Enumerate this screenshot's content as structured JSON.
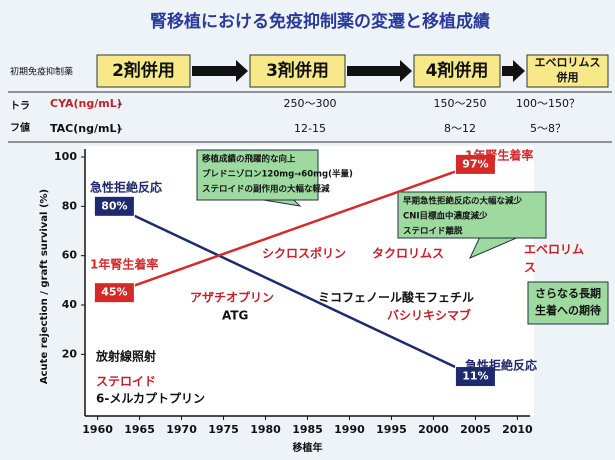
{
  "header": {
    "title": "腎移植における免疫抑制薬の変遷と移植成績"
  },
  "regimen": {
    "label": "初期免疫抑制薬",
    "steps": [
      [
        "2剤併用"
      ],
      [
        "3剤併用"
      ],
      [
        "4剤併用"
      ],
      [
        "エベロリムス",
        "併用"
      ]
    ]
  },
  "trough": {
    "label": [
      "トラ",
      "フ値"
    ],
    "rows": [
      {
        "label": "CYA(ng/mL)",
        "cells": [
          "–",
          "250～300",
          "150～250",
          "100～150？"
        ]
      },
      {
        "label": "TAC(ng/mL)",
        "cells": [
          "–",
          "12-15",
          "8～12",
          "5～8？"
        ]
      }
    ]
  },
  "chart_data": {
    "type": "line",
    "xlabel": "移植年",
    "ylabel": "Acute rejection / graft survival (%)",
    "xlim": [
      1958.5,
      2011.5
    ],
    "ylim": [
      -5,
      100
    ],
    "xticks": [
      1960,
      1965,
      1970,
      1975,
      1980,
      1985,
      1990,
      1995,
      2000,
      2005,
      2010
    ],
    "yticks": [
      20,
      40,
      60,
      80,
      100
    ],
    "series": [
      {
        "name": "急性拒絶反応",
        "color": "#1f2a6e",
        "x": [
          1962,
          2005
        ],
        "values": [
          80,
          11
        ],
        "value_labels": [
          "80%",
          "11%"
        ]
      },
      {
        "name": "1年腎生着率",
        "color": "#d42a2a",
        "x": [
          1962,
          2005
        ],
        "values": [
          45,
          97
        ],
        "value_labels": [
          "45%",
          "97%"
        ]
      }
    ],
    "annotations": [
      {
        "lines": [
          "シクロスポリン"
        ],
        "color": "#c8202a"
      },
      {
        "lines": [
          "タクロリムス"
        ],
        "color": "#c8202a"
      },
      {
        "lines": [
          "エベロリム",
          "ス"
        ],
        "color": "#c8202a"
      },
      {
        "lines": [
          "アザチオプリン"
        ],
        "color": "#c8202a"
      },
      {
        "lines": [
          "ATG"
        ],
        "color": "#111111"
      },
      {
        "lines": [
          "ミコフェノール酸モフェチル"
        ],
        "color": "#111111"
      },
      {
        "lines": [
          "バシリキシマブ"
        ],
        "color": "#c8202a"
      },
      {
        "lines": [
          "放射線照射"
        ],
        "color": "#111111"
      },
      {
        "lines": [
          "ステロイド"
        ],
        "color": "#c8202a"
      },
      {
        "lines": [
          "6-メルカプトプリン"
        ],
        "color": "#111111"
      }
    ],
    "callouts": [
      {
        "lines": [
          "移植成績の飛躍的な向上",
          "プレドニゾロン120mg→60mg(半量)",
          "ステロイドの副作用の大幅な軽減"
        ]
      },
      {
        "lines": [
          "早期急性拒絶反応の大幅な減少",
          "CNI目標血中濃度減少",
          "ステロイド離脱"
        ]
      },
      {
        "lines": [
          "さらなる長期",
          "生着への期待"
        ]
      }
    ]
  }
}
